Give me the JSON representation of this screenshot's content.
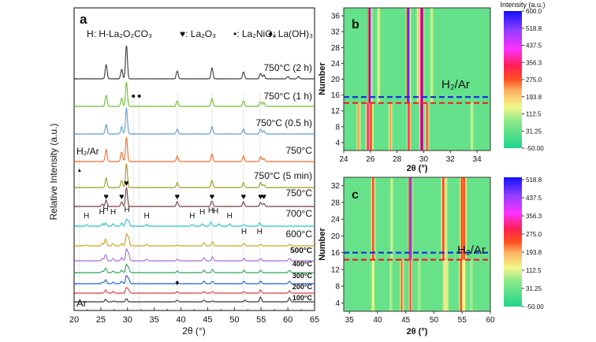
{
  "chart_data": [
    {
      "panel": "a",
      "type": "line",
      "title": "",
      "xlabel": "2θ (°)",
      "ylabel": "Relative Intensity (a.u.)",
      "xlim": [
        20,
        65
      ],
      "xticks": [
        "20",
        "25",
        "30",
        "35",
        "40",
        "45",
        "50",
        "55",
        "60",
        "65"
      ],
      "legend_text": {
        "h": "H: H-La₂O₂CO₃",
        "heart": "♥: La₂O₃",
        "dot": "•: La₂NiO₄",
        "diamond": "♦: La(OH)₃"
      },
      "atmosphere_labels": {
        "top": "H₂/Ar",
        "bottom": "Ar"
      },
      "series": [
        {
          "name": "750°C (2 h)",
          "color": "#3a3a3a",
          "peaks": [
            [
              26.0,
              18
            ],
            [
              28.9,
              12
            ],
            [
              29.8,
              42
            ],
            [
              39.3,
              10
            ],
            [
              45.8,
              14
            ],
            [
              51.7,
              9
            ],
            [
              54.9,
              7
            ],
            [
              55.5,
              5
            ],
            [
              60.0,
              3
            ],
            [
              62.0,
              3
            ]
          ]
        },
        {
          "name": "750°C (1 h)",
          "color": "#6abf2a",
          "peaks": [
            [
              26.0,
              14
            ],
            [
              28.9,
              10
            ],
            [
              29.8,
              30
            ],
            [
              39.3,
              7
            ],
            [
              45.8,
              10
            ],
            [
              51.7,
              7
            ],
            [
              54.9,
              6
            ],
            [
              55.5,
              5
            ]
          ]
        },
        {
          "name": "750°C (0.5 h)",
          "color": "#5b9bd5",
          "peaks": [
            [
              26.0,
              12
            ],
            [
              28.9,
              9
            ],
            [
              29.8,
              32
            ],
            [
              39.3,
              6
            ],
            [
              45.8,
              9
            ],
            [
              51.7,
              6
            ],
            [
              54.9,
              6
            ],
            [
              55.5,
              4
            ]
          ]
        },
        {
          "name": "750°C",
          "color": "#f26b2a",
          "peaks": [
            [
              26.0,
              15
            ],
            [
              28.9,
              12
            ],
            [
              29.8,
              30
            ],
            [
              39.3,
              7
            ],
            [
              45.8,
              9
            ],
            [
              51.7,
              7
            ],
            [
              54.9,
              6
            ],
            [
              55.5,
              4
            ]
          ]
        },
        {
          "name": "750°C (5 min)",
          "color": "#9a9a1e",
          "peaks": [
            [
              26.0,
              12
            ],
            [
              28.9,
              9
            ],
            [
              29.8,
              30
            ],
            [
              39.3,
              6
            ],
            [
              45.8,
              9
            ],
            [
              51.7,
              6
            ],
            [
              54.9,
              6
            ],
            [
              55.5,
              4
            ]
          ]
        },
        {
          "name": "750°C",
          "color": "#7b3b3b",
          "peaks": [
            [
              25.3,
              3
            ],
            [
              26.0,
              8
            ],
            [
              28.9,
              6
            ],
            [
              29.8,
              24
            ],
            [
              39.3,
              6
            ],
            [
              45.8,
              7
            ],
            [
              51.7,
              6
            ],
            [
              54.9,
              5
            ],
            [
              55.5,
              4
            ]
          ]
        },
        {
          "name": "700°C",
          "color": "#1fc4d0",
          "peaks": [
            [
              22.3,
              2
            ],
            [
              25.3,
              3
            ],
            [
              25.9,
              4
            ],
            [
              27.3,
              3
            ],
            [
              28.9,
              4
            ],
            [
              29.8,
              8
            ],
            [
              30.2,
              6
            ],
            [
              33.6,
              2
            ],
            [
              42.1,
              2
            ],
            [
              44.0,
              3
            ],
            [
              45.6,
              5
            ],
            [
              47.1,
              3
            ],
            [
              49.1,
              3
            ],
            [
              51.8,
              2
            ],
            [
              54.7,
              4
            ]
          ]
        },
        {
          "name": "600°C",
          "color": "#d1a11c",
          "peaks": [
            [
              22.3,
              1
            ],
            [
              25.3,
              3
            ],
            [
              25.9,
              9
            ],
            [
              27.3,
              3
            ],
            [
              28.9,
              3
            ],
            [
              29.8,
              14
            ],
            [
              30.2,
              10
            ],
            [
              33.6,
              2
            ],
            [
              39.3,
              1
            ],
            [
              44.3,
              4
            ],
            [
              45.9,
              5
            ],
            [
              51.8,
              3
            ],
            [
              54.9,
              2
            ],
            [
              60.3,
              2
            ]
          ]
        },
        {
          "name": "500°C",
          "color": "#a66bd4",
          "peaks": [
            [
              25.3,
              3
            ],
            [
              25.9,
              8
            ],
            [
              27.3,
              3
            ],
            [
              28.9,
              4
            ],
            [
              29.8,
              14
            ],
            [
              30.2,
              9
            ],
            [
              33.6,
              2
            ],
            [
              39.3,
              2
            ],
            [
              44.3,
              4
            ],
            [
              45.9,
              5
            ],
            [
              51.8,
              3
            ],
            [
              54.9,
              3
            ],
            [
              60.3,
              3
            ]
          ]
        },
        {
          "name": "400°C",
          "color": "#2aa65a",
          "peaks": [
            [
              25.3,
              2
            ],
            [
              25.9,
              6
            ],
            [
              27.3,
              2
            ],
            [
              28.9,
              3
            ],
            [
              29.8,
              10
            ],
            [
              30.2,
              6
            ],
            [
              39.3,
              2
            ],
            [
              44.3,
              3
            ],
            [
              45.9,
              4
            ],
            [
              51.8,
              3
            ],
            [
              54.9,
              3
            ],
            [
              60.3,
              3
            ]
          ]
        },
        {
          "name": "300°C",
          "color": "#1f5fd6",
          "peaks": [
            [
              25.3,
              2
            ],
            [
              25.9,
              5
            ],
            [
              27.3,
              2
            ],
            [
              28.9,
              3
            ],
            [
              29.8,
              10
            ],
            [
              30.2,
              6
            ],
            [
              39.3,
              3
            ],
            [
              44.3,
              3
            ],
            [
              45.9,
              3
            ],
            [
              51.8,
              3
            ],
            [
              54.9,
              3
            ],
            [
              60.3,
              3
            ]
          ]
        },
        {
          "name": "200°C",
          "color": "#e03a3a",
          "peaks": [
            [
              25.9,
              4
            ],
            [
              27.3,
              2
            ],
            [
              29.8,
              7
            ],
            [
              30.2,
              4
            ],
            [
              39.3,
              2
            ],
            [
              44.3,
              2
            ],
            [
              45.9,
              2
            ],
            [
              51.8,
              2
            ],
            [
              54.9,
              4
            ],
            [
              60.3,
              3
            ]
          ]
        },
        {
          "name": "100°C",
          "color": "#333333",
          "peaks": [
            [
              25.9,
              3
            ],
            [
              27.5,
              1
            ],
            [
              29.8,
              4
            ],
            [
              39.3,
              2
            ],
            [
              44.3,
              2
            ],
            [
              45.9,
              1
            ],
            [
              52.0,
              2
            ],
            [
              54.9,
              6
            ],
            [
              60.3,
              5
            ]
          ]
        }
      ],
      "markers": {
        "la2nio4_dots": [
          31.1,
          32.2
        ],
        "la2o3_hearts": [
          26.0,
          28.9,
          29.8,
          39.3,
          45.8,
          51.7,
          54.9,
          55.5
        ],
        "h_700": [
          22.3,
          25.2,
          25.9,
          27.3,
          29.9,
          33.6,
          42.1,
          44.0,
          45.6,
          46.5,
          49.1
        ],
        "h_600": [
          51.8,
          54.7
        ],
        "diamond_200": [
          39.3
        ],
        "arrow_x": 21.0
      }
    },
    {
      "panel": "b",
      "type": "heatmap",
      "xlabel": "2θ (°)",
      "ylabel": "Number",
      "xlim": [
        24,
        35
      ],
      "ylim": [
        2,
        38
      ],
      "xticks": [
        "24",
        "26",
        "28",
        "30",
        "32",
        "34"
      ],
      "yticks": [
        "4",
        "8",
        "12",
        "16",
        "20",
        "24",
        "28",
        "32",
        "36"
      ],
      "annotation": "H₂/Ar",
      "blue_dashed_line_at": 15.5,
      "red_dashed_line_at": 14,
      "bands_after_switch": [
        [
          25.95,
          600
        ],
        [
          26.6,
          160
        ],
        [
          28.85,
          600
        ],
        [
          29.6,
          200
        ],
        [
          29.85,
          600
        ],
        [
          30.6,
          140
        ]
      ],
      "bands_before_switch": [
        [
          25.1,
          250
        ],
        [
          25.8,
          420
        ],
        [
          26.05,
          300
        ],
        [
          27.5,
          260
        ],
        [
          28.9,
          400
        ],
        [
          29.85,
          600
        ],
        [
          30.25,
          330
        ],
        [
          33.6,
          130
        ]
      ],
      "colorbar": {
        "label": "Intensity (a.u.)",
        "ticks": [
          "600.0",
          "518.8",
          "437.5",
          "356.3",
          "275.0",
          "193.8",
          "112.5",
          "31.25",
          "-50.00"
        ],
        "range": [
          -50,
          600
        ]
      }
    },
    {
      "panel": "c",
      "type": "heatmap",
      "xlabel": "2θ (°)",
      "ylabel": "Number",
      "xlim": [
        34,
        60
      ],
      "ylim": [
        2,
        34
      ],
      "xticks": [
        "35",
        "40",
        "45",
        "50",
        "55",
        "60"
      ],
      "yticks": [
        "4",
        "8",
        "12",
        "16",
        "20",
        "24",
        "28",
        "32"
      ],
      "annotation": "H₂/Ar",
      "blue_dashed_line_at": 16,
      "red_dashed_line_at": 14.3,
      "bands_after_switch": [
        [
          39.2,
          300
        ],
        [
          42.5,
          120
        ],
        [
          45.8,
          480
        ],
        [
          51.6,
          300
        ],
        [
          52.1,
          150
        ],
        [
          54.9,
          300
        ],
        [
          55.4,
          260
        ]
      ],
      "bands_before_switch": [
        [
          39.2,
          150
        ],
        [
          42.3,
          100
        ],
        [
          44.3,
          280
        ],
        [
          45.8,
          300
        ],
        [
          47.3,
          100
        ],
        [
          51.8,
          160
        ],
        [
          52.3,
          140
        ],
        [
          54.8,
          300
        ],
        [
          55.4,
          140
        ],
        [
          56.6,
          110
        ]
      ],
      "colorbar": {
        "label": "",
        "ticks": [
          "518.8",
          "437.5",
          "356.3",
          "275.0",
          "193.8",
          "112.5",
          "31.25",
          "-50.00"
        ],
        "range": [
          -50,
          560
        ]
      }
    }
  ]
}
